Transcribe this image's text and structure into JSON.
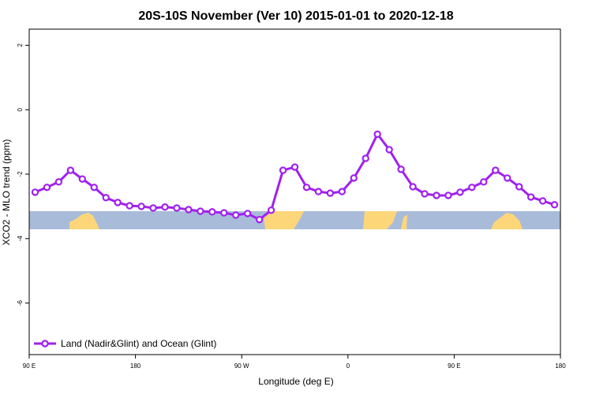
{
  "chart_data": {
    "type": "line",
    "title": "20S-10S November (Ver 10)   2015-01-01 to 2020-12-18",
    "x_label": "Longitude (deg E)",
    "y_label": "XCO2 - MLO trend (ppm)",
    "x": [
      95,
      105,
      115,
      125,
      135,
      145,
      155,
      165,
      175,
      185,
      195,
      205,
      215,
      225,
      235,
      245,
      255,
      265,
      275,
      285,
      295,
      305,
      315,
      325,
      335,
      345,
      355,
      365,
      375,
      385,
      395,
      405,
      415,
      425,
      435,
      445,
      455,
      465,
      475,
      485,
      495,
      505,
      515,
      525,
      535
    ],
    "series": [
      {
        "name": "Land (Nadir&Glint) and Ocean (Glint)",
        "color": "#a020f0",
        "values": [
          -2.56,
          -2.41,
          -2.24,
          -1.88,
          -2.15,
          -2.41,
          -2.73,
          -2.88,
          -2.98,
          -3.0,
          -3.05,
          -3.02,
          -3.05,
          -3.1,
          -3.15,
          -3.17,
          -3.2,
          -3.27,
          -3.22,
          -3.41,
          -3.12,
          -1.88,
          -1.78,
          -2.41,
          -2.54,
          -2.59,
          -2.54,
          -2.12,
          -1.51,
          -0.76,
          -1.24,
          -1.85,
          -2.39,
          -2.61,
          -2.66,
          -2.66,
          -2.56,
          -2.41,
          -2.24,
          -1.88,
          -2.12,
          -2.39,
          -2.71,
          -2.83,
          -2.95
        ]
      }
    ],
    "xlim": [
      90,
      540
    ],
    "xticks": [
      {
        "value": 90,
        "label": "90 E"
      },
      180,
      {
        "value": 270,
        "label": "90 W"
      },
      {
        "value": 360,
        "label": "0"
      },
      {
        "value": 450,
        "label": "90 E"
      },
      {
        "value": 540,
        "label": "180"
      }
    ],
    "ylim": [
      -7.6,
      2.5
    ],
    "yticks": [
      -6,
      -4,
      -2,
      0,
      2
    ],
    "legend": "bottom-left"
  }
}
